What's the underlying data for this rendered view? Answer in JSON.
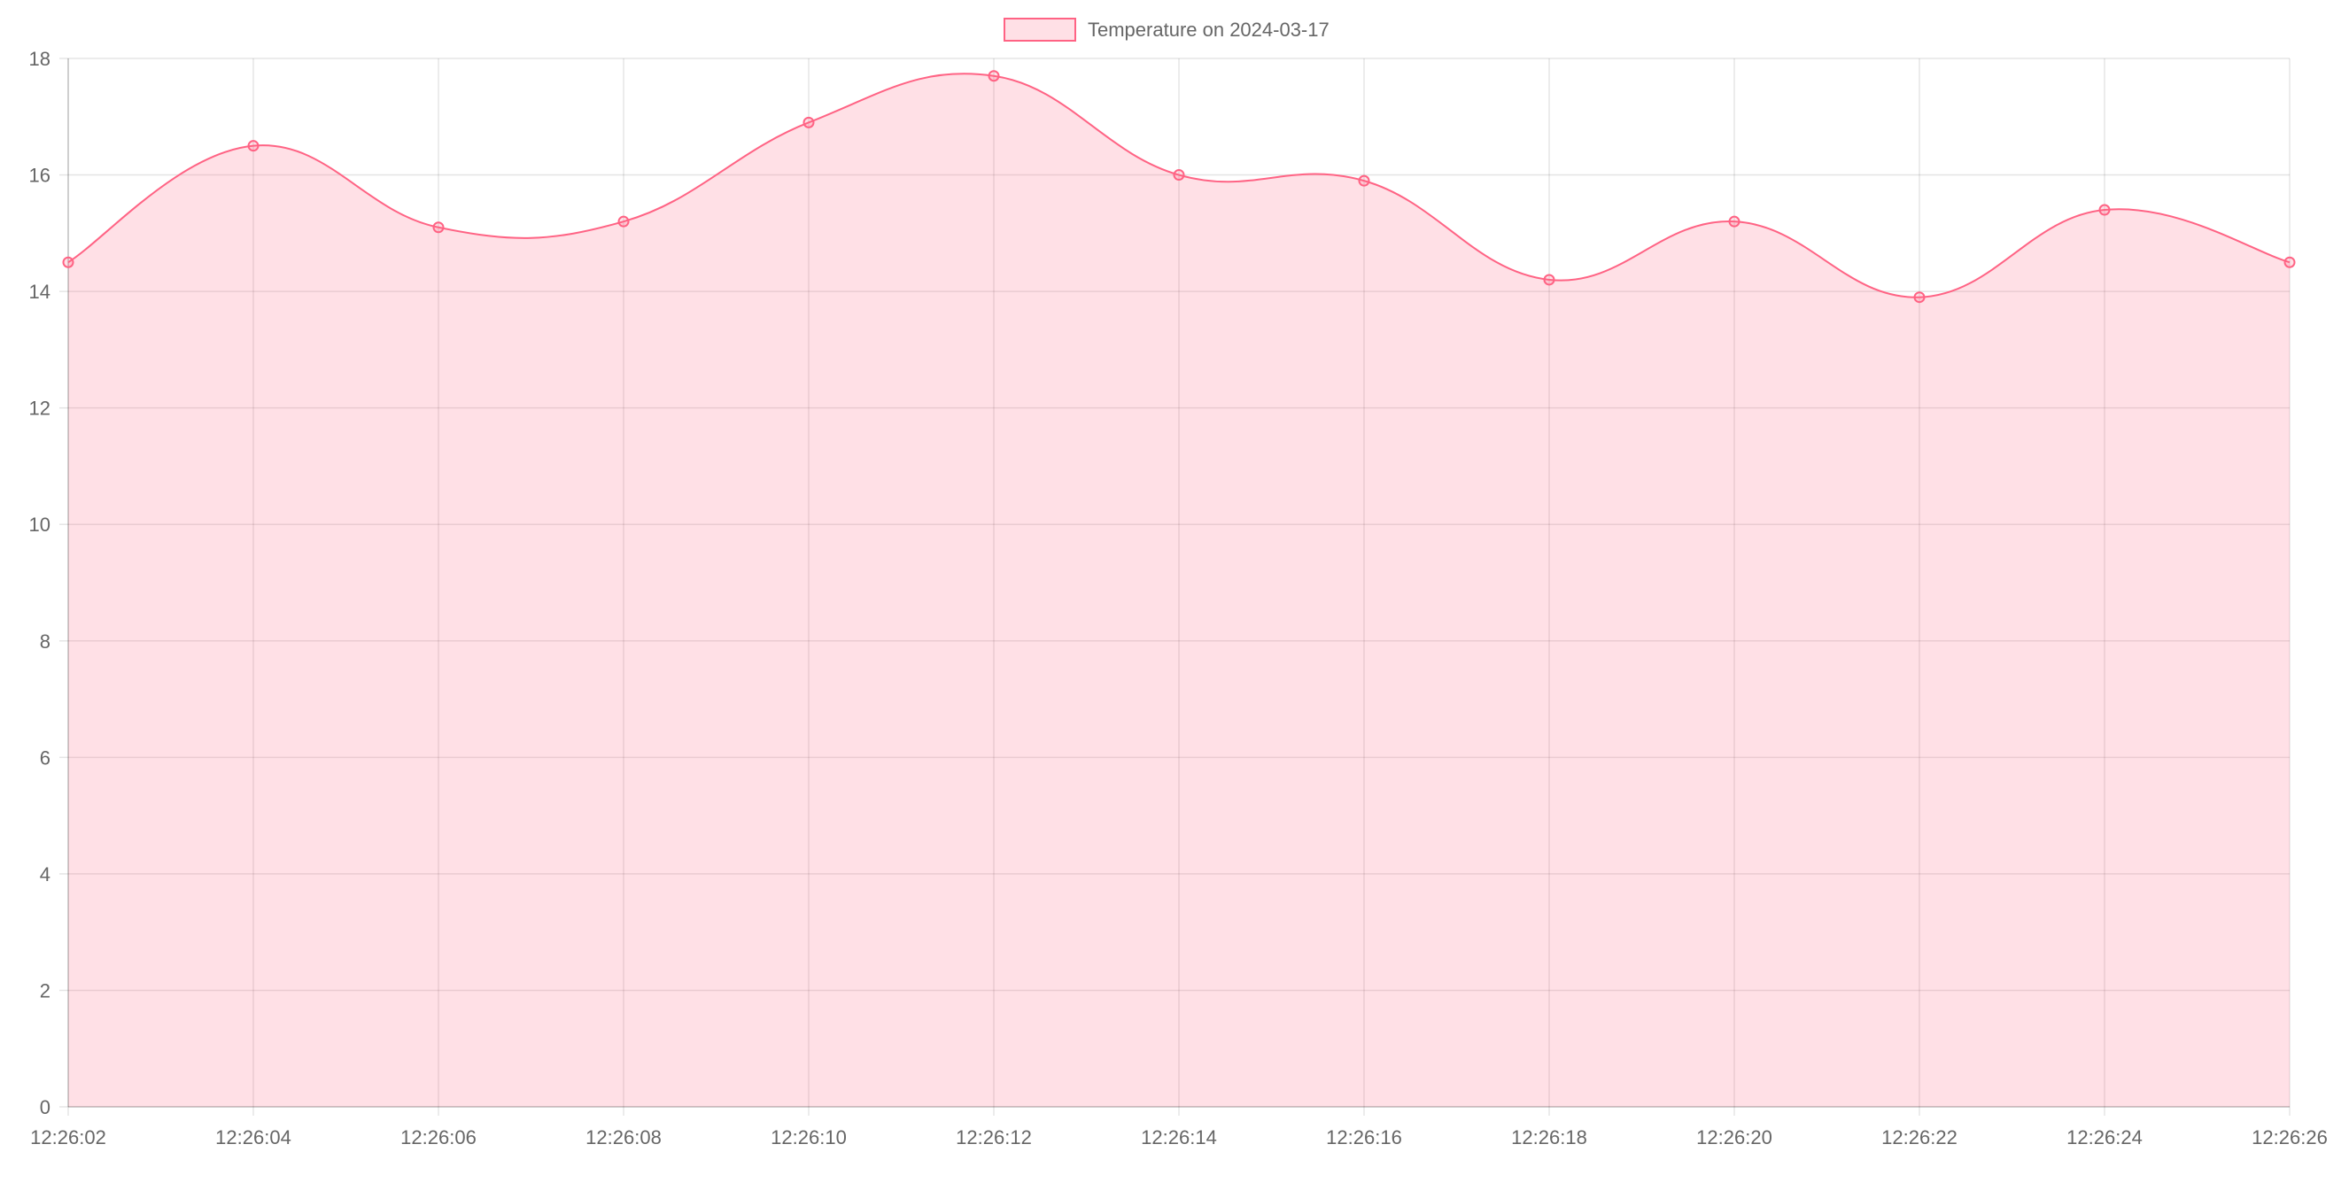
{
  "chart_data": {
    "type": "line",
    "title": "",
    "xlabel": "",
    "ylabel": "",
    "x": [
      "12:26:02",
      "12:26:04",
      "12:26:06",
      "12:26:08",
      "12:26:10",
      "12:26:12",
      "12:26:14",
      "12:26:16",
      "12:26:18",
      "12:26:20",
      "12:26:22",
      "12:26:24",
      "12:26:26"
    ],
    "series": [
      {
        "name": "Temperature on 2024-03-17",
        "values": [
          14.5,
          16.5,
          15.1,
          15.2,
          16.9,
          17.7,
          16.0,
          15.9,
          14.2,
          15.2,
          13.9,
          15.4,
          14.5
        ],
        "border_color": "#ff6384",
        "fill_color": "#ff638433",
        "filled": true,
        "smooth": true
      }
    ],
    "ylim": [
      0,
      18
    ],
    "yticks": [
      0,
      2,
      4,
      6,
      8,
      10,
      12,
      14,
      16,
      18
    ],
    "grid": true,
    "legend_position": "top-center"
  }
}
